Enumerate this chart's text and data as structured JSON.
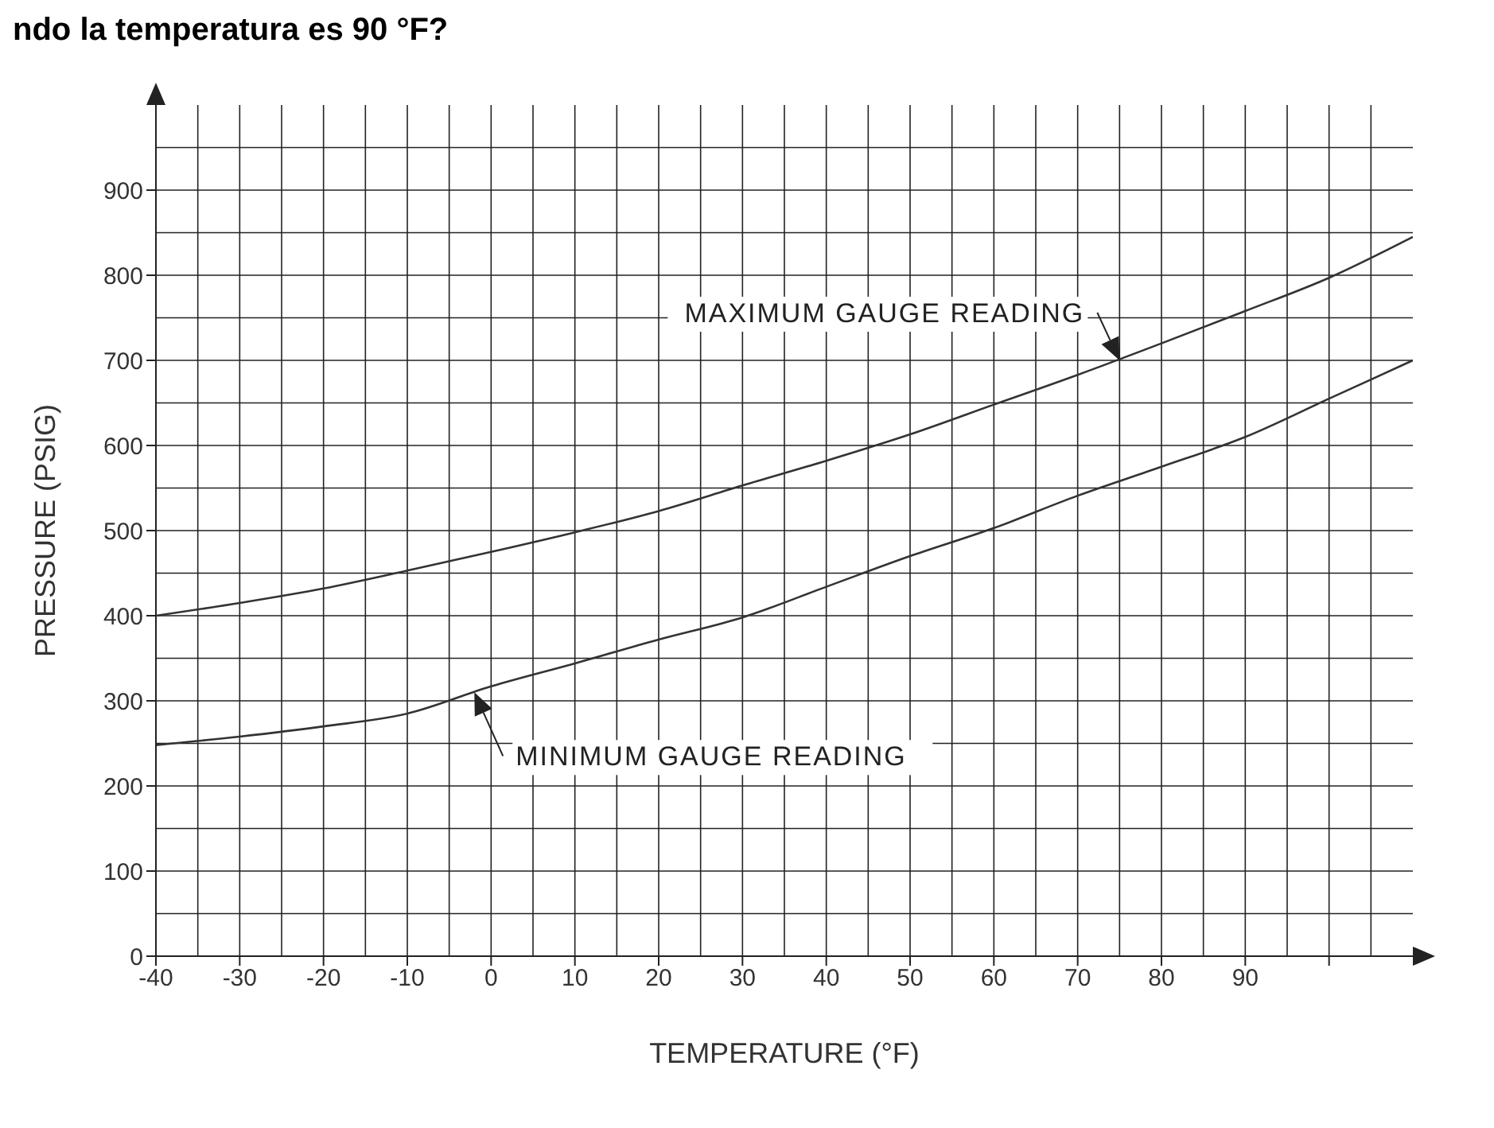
{
  "chart_data": {
    "type": "line",
    "title": "ndo la temperatura es 90 °F?",
    "xlabel": "TEMPERATURE (°F)",
    "ylabel": "PRESSURE (PSIG)",
    "x": [
      -40,
      -30,
      -20,
      -10,
      0,
      10,
      20,
      30,
      40,
      50,
      60,
      70,
      80,
      90,
      100,
      110
    ],
    "series": [
      {
        "color": "#333333",
        "values": [
          400,
          415,
          432,
          453,
          475,
          498,
          523,
          553,
          582,
          613,
          648,
          683,
          720,
          758,
          797,
          845
        ]
      },
      {
        "color": "#333333",
        "values": [
          248,
          258,
          270,
          285,
          317,
          344,
          372,
          398,
          434,
          470,
          503,
          541,
          575,
          610,
          655,
          700
        ]
      }
    ],
    "xlim": [
      -40,
      110
    ],
    "xticks": [
      -40,
      -30,
      -20,
      -10,
      0,
      10,
      20,
      30,
      40,
      50,
      60,
      70,
      80,
      90,
      {
        "value": 100,
        "label": null
      }
    ],
    "ylim": [
      0,
      1000
    ],
    "yticks": [
      0,
      100,
      200,
      300,
      400,
      500,
      600,
      700,
      800,
      900
    ],
    "grid": true,
    "marker": "none",
    "line_style": "solid",
    "legend": false,
    "annotations": [
      {
        "text": "MAXIMUM GAUGE READING",
        "x": 75,
        "y": 700
      },
      {
        "text": "MINIMUM GAUGE READING",
        "x": -2,
        "y": 310
      }
    ]
  }
}
